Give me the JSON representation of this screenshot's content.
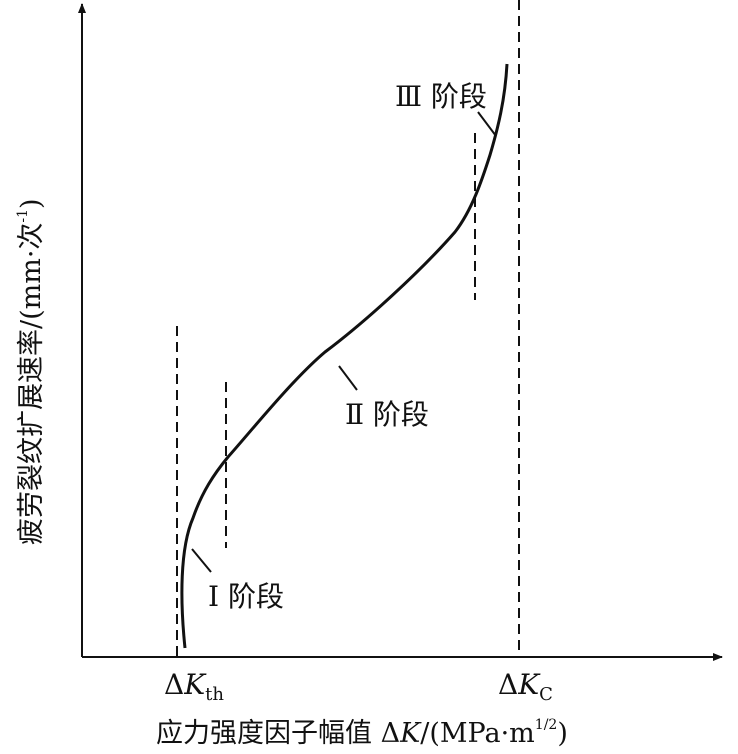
{
  "axes": {
    "x_label": {
      "main": "应力强度因子幅值 Δ",
      "var": "K",
      "unit": "/(MPa·m",
      "exp": "1/2",
      "close": ")"
    },
    "y_label": {
      "main": "疲劳裂纹扩展速率/(mm·次",
      "exp": "-1",
      "close": ")"
    }
  },
  "markers": {
    "kth": {
      "delta": "Δ",
      "var": "K",
      "sub": "th"
    },
    "kc": {
      "delta": "Δ",
      "var": "K",
      "sub": "C"
    }
  },
  "stages": {
    "stage1": "Ⅰ 阶段",
    "stage2": "Ⅱ 阶段",
    "stage3": "Ⅲ 阶段"
  },
  "colors": {
    "line": "#111111",
    "background": "#ffffff"
  }
}
